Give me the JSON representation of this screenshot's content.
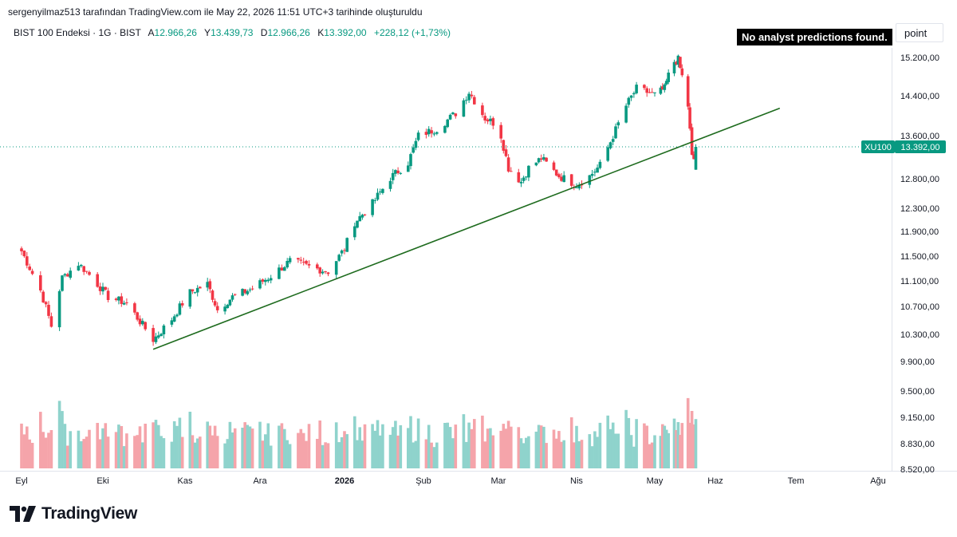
{
  "attribution": "sergenyilmaz513 tarafından TradingView.com ile May 22, 2026 11:51 UTC+3 tarihinde oluşturuldu",
  "legend": {
    "symbol": "BIST 100 Endeksi · 1G · BIST",
    "open_label": "A",
    "open": "12.966,26",
    "high_label": "Y",
    "high": "13.439,73",
    "low_label": "D",
    "low": "12.966,26",
    "close_label": "K",
    "close": "13.392,00",
    "change": "+228,12 (+1,73%)"
  },
  "badge": "No analyst predictions found.",
  "unit_button": "point",
  "last_price": {
    "symbol": "XU100",
    "value": "13.392,00",
    "y": 13392
  },
  "logo": "TradingView",
  "colors": {
    "up": "#089981",
    "down": "#f23645",
    "up_volume": "#8fd3cc",
    "down_volume": "#f5a4aa",
    "trendline": "#1e6b1e",
    "label_bg": "#089981"
  },
  "chart_data": {
    "type": "candlestick",
    "y_axis_ticks": [
      "15.200,00",
      "14.400,00",
      "13.600,00",
      "12.800,00",
      "12.300,00",
      "11.900,00",
      "11.500,00",
      "11.100,00",
      "10.700,00",
      "10.300,00",
      "9.900,00",
      "9.500,00",
      "9.150,00",
      "8.830,00",
      "8.520,00"
    ],
    "x_axis_ticks": [
      {
        "label": "Eyl",
        "bold": false
      },
      {
        "label": "Eki",
        "bold": false
      },
      {
        "label": "Kas",
        "bold": false
      },
      {
        "label": "Ara",
        "bold": false
      },
      {
        "label": "2026",
        "bold": true
      },
      {
        "label": "Şub",
        "bold": false
      },
      {
        "label": "Mar",
        "bold": false
      },
      {
        "label": "Nis",
        "bold": false
      },
      {
        "label": "May",
        "bold": false
      },
      {
        "label": "Haz",
        "bold": false
      },
      {
        "label": "Tem",
        "bold": false
      },
      {
        "label": "Ağu",
        "bold": false
      }
    ],
    "price_anchors": [
      {
        "x": "2025-09-01",
        "y": 11580
      },
      {
        "x": "2025-09-08",
        "y": 10950
      },
      {
        "x": "2025-09-12",
        "y": 10420
      },
      {
        "x": "2025-09-16",
        "y": 11150
      },
      {
        "x": "2025-09-22",
        "y": 11380
      },
      {
        "x": "2025-09-26",
        "y": 11200
      },
      {
        "x": "2025-10-03",
        "y": 10850
      },
      {
        "x": "2025-10-10",
        "y": 10750
      },
      {
        "x": "2025-10-20",
        "y": 10220
      },
      {
        "x": "2025-10-27",
        "y": 10520
      },
      {
        "x": "2025-11-03",
        "y": 10920
      },
      {
        "x": "2025-11-10",
        "y": 11050
      },
      {
        "x": "2025-11-14",
        "y": 10650
      },
      {
        "x": "2025-11-20",
        "y": 10850
      },
      {
        "x": "2025-11-28",
        "y": 10980
      },
      {
        "x": "2025-12-05",
        "y": 11180
      },
      {
        "x": "2025-12-12",
        "y": 11420
      },
      {
        "x": "2025-12-19",
        "y": 11330
      },
      {
        "x": "2025-12-26",
        "y": 11250
      },
      {
        "x": "2026-01-01",
        "y": 11620
      },
      {
        "x": "2026-01-05",
        "y": 12060
      },
      {
        "x": "2026-01-12",
        "y": 12380
      },
      {
        "x": "2026-01-19",
        "y": 12820
      },
      {
        "x": "2026-01-26",
        "y": 13100
      },
      {
        "x": "2026-01-30",
        "y": 13600
      },
      {
        "x": "2026-02-06",
        "y": 13740
      },
      {
        "x": "2026-02-13",
        "y": 14050
      },
      {
        "x": "2026-02-18",
        "y": 14480
      },
      {
        "x": "2026-02-24",
        "y": 13950
      },
      {
        "x": "2026-03-01",
        "y": 13800
      },
      {
        "x": "2026-03-05",
        "y": 13000
      },
      {
        "x": "2026-03-10",
        "y": 12750
      },
      {
        "x": "2026-03-13",
        "y": 13000
      },
      {
        "x": "2026-03-18",
        "y": 13180
      },
      {
        "x": "2026-03-25",
        "y": 12850
      },
      {
        "x": "2026-04-01",
        "y": 12700
      },
      {
        "x": "2026-04-06",
        "y": 12850
      },
      {
        "x": "2026-04-10",
        "y": 13050
      },
      {
        "x": "2026-04-15",
        "y": 13600
      },
      {
        "x": "2026-04-20",
        "y": 14200
      },
      {
        "x": "2026-04-24",
        "y": 14550
      },
      {
        "x": "2026-05-01",
        "y": 14420
      },
      {
        "x": "2026-05-06",
        "y": 14550
      },
      {
        "x": "2026-05-10",
        "y": 15100
      },
      {
        "x": "2026-05-13",
        "y": 15150
      },
      {
        "x": "2026-05-15",
        "y": 14800
      },
      {
        "x": "2026-05-18",
        "y": 14200
      },
      {
        "x": "2026-05-20",
        "y": 13200
      },
      {
        "x": "2026-05-21",
        "y": 13164
      },
      {
        "x": "2026-05-22",
        "y": 13392
      }
    ],
    "trendline": [
      {
        "x": "2025-10-20",
        "y": 10080
      },
      {
        "x": "2026-06-25",
        "y": 14150
      }
    ]
  }
}
